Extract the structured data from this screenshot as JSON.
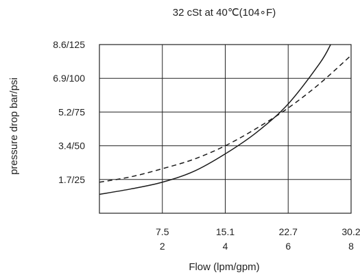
{
  "chart_data": {
    "type": "line",
    "title": "32 cSt at 40℃(104∘F)",
    "xlabel": "Flow (lpm/gpm)",
    "ylabel": "pressure drop bar/psi",
    "xlim": [
      0,
      8
    ],
    "ylim": [
      0,
      125
    ],
    "x_ticks": [
      {
        "value": 2,
        "label_top": "7.5",
        "label_bottom": "2"
      },
      {
        "value": 4,
        "label_top": "15.1",
        "label_bottom": "4"
      },
      {
        "value": 6,
        "label_top": "22.7",
        "label_bottom": "6"
      },
      {
        "value": 8,
        "label_top": "30.2",
        "label_bottom": "8"
      }
    ],
    "y_ticks": [
      {
        "value": 25,
        "label": "1.7/25"
      },
      {
        "value": 50,
        "label": "3.4/50"
      },
      {
        "value": 75,
        "label": "5.2/75"
      },
      {
        "value": 100,
        "label": "6.9/100"
      },
      {
        "value": 125,
        "label": "8.6/125"
      }
    ],
    "grid": true,
    "series": [
      {
        "style": "solid",
        "color": "#1a1a1a",
        "x": [
          0,
          1,
          2,
          3,
          4,
          5,
          6,
          7,
          7.35
        ],
        "y": [
          14,
          18,
          23,
          31,
          44,
          60,
          81,
          111,
          125
        ]
      },
      {
        "style": "dashed",
        "color": "#1a1a1a",
        "x": [
          0,
          1,
          2,
          3,
          4,
          5,
          6,
          7,
          8
        ],
        "y": [
          23,
          27,
          33,
          40,
          50,
          63,
          78,
          96,
          117
        ]
      }
    ]
  }
}
